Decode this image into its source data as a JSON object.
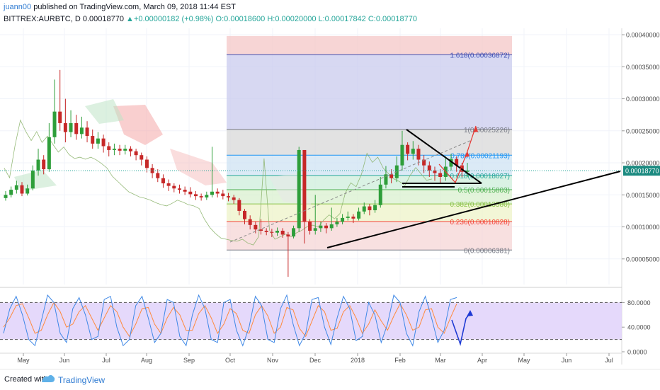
{
  "header": {
    "user": "juann00",
    "published_text": "published on TradingView.com, March 09, 2018 11:44 EST",
    "symbol": "BITTREX:AURBTC, D",
    "last": "0.00018770",
    "change": "+0.00000182 (+0.98%)",
    "ohlc": "O:0.00018600 H:0.00020000 L:0.00017842 C:0.00018770"
  },
  "footer": {
    "created": "Created with",
    "brand": "TradingView"
  },
  "chart_data": {
    "type": "candlestick",
    "x_labels": [
      "May",
      "Jun",
      "Jul",
      "Aug",
      "Sep",
      "Oct",
      "Nov",
      "Dec",
      "2018",
      "Feb",
      "Mar",
      "Apr",
      "May",
      "Jun",
      "Jul"
    ],
    "y_ticks": [
      "0.00040000",
      "0.00035000",
      "0.00030000",
      "0.00025000",
      "0.00020000",
      "0.00015000",
      "0.00010000",
      "0.00005000"
    ],
    "ylim": [
      1e-05,
      0.00041
    ],
    "current_price": "0.00018770",
    "fib_levels": [
      {
        "ratio": 1.618,
        "label": "1.618(0.00036872)",
        "price": 0.00036872,
        "color": "#3f51b5"
      },
      {
        "ratio": 1,
        "label": "1(0.00025226)",
        "price": 0.00025226,
        "color": "#787b86"
      },
      {
        "ratio": 0.786,
        "label": "0.786(0.00021193)",
        "price": 0.00021193,
        "color": "#2196f3"
      },
      {
        "ratio": 0.618,
        "label": "0.618(0.00018027)",
        "price": 0.00018027,
        "color": "#26a69a"
      },
      {
        "ratio": 0.5,
        "label": "0.5(0.00015803)",
        "price": 0.00015803,
        "color": "#4caf50"
      },
      {
        "ratio": 0.382,
        "label": "0.382(0.00013580)",
        "price": 0.0001358,
        "color": "#8bc34a"
      },
      {
        "ratio": 0.236,
        "label": "0.236(0.00010828)",
        "price": 0.00010828,
        "color": "#f44336"
      },
      {
        "ratio": 0,
        "label": "0(0.00006381)",
        "price": 6.381e-05,
        "color": "#787b86"
      }
    ],
    "candles": [
      [
        0.000145,
        0.00015,
        0.000156,
        0.000141
      ],
      [
        0.00015,
        0.000158,
        0.000163,
        0.000146
      ],
      [
        0.000158,
        0.000165,
        0.000172,
        0.000152
      ],
      [
        0.000165,
        0.000152,
        0.00017,
        0.000148
      ],
      [
        0.000152,
        0.00016,
        0.000166,
        0.000149
      ],
      [
        0.00016,
        0.000188,
        0.000196,
        0.000157
      ],
      [
        0.000188,
        0.000205,
        0.000222,
        0.00018
      ],
      [
        0.000205,
        0.00019,
        0.000212,
        0.000182
      ],
      [
        0.00019,
        0.00024,
        0.000262,
        0.000186
      ],
      [
        0.00024,
        0.00028,
        0.00033,
        0.00023
      ],
      [
        0.00028,
        0.000262,
        0.000345,
        0.00025
      ],
      [
        0.000262,
        0.000248,
        0.0003,
        0.000232
      ],
      [
        0.000248,
        0.000262,
        0.000282,
        0.00024
      ],
      [
        0.000262,
        0.000245,
        0.000275,
        0.000236
      ],
      [
        0.000245,
        0.000255,
        0.000272,
        0.000238
      ],
      [
        0.000255,
        0.000242,
        0.000265,
        0.000232
      ],
      [
        0.000242,
        0.00023,
        0.000252,
        0.000222
      ],
      [
        0.00023,
        0.000238,
        0.000248,
        0.000222
      ],
      [
        0.000238,
        0.000226,
        0.000244,
        0.000216
      ],
      [
        0.000226,
        0.00022,
        0.000232,
        0.00021
      ],
      [
        0.00022,
        0.000222,
        0.00023,
        0.000212
      ],
      [
        0.000222,
        0.000219,
        0.000228,
        0.000212
      ],
      [
        0.000219,
        0.000222,
        0.000228,
        0.000213
      ],
      [
        0.000222,
        0.000218,
        0.000226,
        0.00021
      ],
      [
        0.000218,
        0.000212,
        0.000222,
        0.000204
      ],
      [
        0.000212,
        0.000205,
        0.000216,
        0.000196
      ],
      [
        0.000205,
        0.000192,
        0.00021,
        0.000185
      ],
      [
        0.000192,
        0.000184,
        0.000198,
        0.000176
      ],
      [
        0.000184,
        0.000176,
        0.00019,
        0.00017
      ],
      [
        0.000176,
        0.000168,
        0.000182,
        0.000161
      ],
      [
        0.000168,
        0.000164,
        0.000174,
        0.000156
      ],
      [
        0.000164,
        0.00016,
        0.000168,
        0.000154
      ],
      [
        0.00016,
        0.000158,
        0.000166,
        0.000152
      ],
      [
        0.000158,
        0.000155,
        0.000163,
        0.00015
      ],
      [
        0.000155,
        0.000151,
        0.000162,
        0.000146
      ],
      [
        0.000151,
        0.000148,
        0.000156,
        0.000142
      ],
      [
        0.000148,
        0.000146,
        0.000152,
        0.000141
      ],
      [
        0.000146,
        0.00015,
        0.000155,
        0.000142
      ],
      [
        0.00015,
        0.000155,
        0.000225,
        0.000146
      ],
      [
        0.000155,
        0.000152,
        0.00016,
        0.000146
      ],
      [
        0.000152,
        0.000148,
        0.000158,
        0.000143
      ],
      [
        0.000148,
        0.000146,
        0.000153,
        0.00014
      ],
      [
        0.000146,
        0.000142,
        0.00015,
        0.000136
      ],
      [
        0.000142,
        0.000125,
        0.000145,
        0.000118
      ],
      [
        0.000125,
        0.000112,
        0.000128,
        0.000104
      ],
      [
        0.000112,
        0.000103,
        0.000118,
        9.6e-05
      ],
      [
        0.000103,
        9.6e-05,
        0.000108,
        9e-05
      ],
      [
        9.6e-05,
        9.4e-05,
        0.000112,
        8.8e-05
      ],
      [
        9.4e-05,
        9.2e-05,
        9.8e-05,
        8.7e-05
      ],
      [
        9.2e-05,
        9.1e-05,
        9.7e-05,
        8.4e-05
      ],
      [
        9.1e-05,
        9.4e-05,
        9.9e-05,
        8.6e-05
      ],
      [
        9.4e-05,
        8.8e-05,
        9.8e-05,
        8.3e-05
      ],
      [
        8.8e-05,
        8.5e-05,
        9.2e-05,
        2.2e-05
      ],
      [
        8.5e-05,
        9.8e-05,
        0.000102,
        8.2e-05
      ],
      [
        9.8e-05,
        0.00022,
        0.000225,
        9.2e-05
      ],
      [
        0.00022,
        0.000108,
        0.0002,
        7.4e-05
      ],
      [
        0.000108,
        9.4e-05,
        0.000112,
        8.8e-05
      ],
      [
        9.4e-05,
        9.8e-05,
        0.00015,
        8.8e-05
      ],
      [
        9.8e-05,
        0.000102,
        0.000108,
        9.2e-05
      ],
      [
        0.000102,
        9.8e-05,
        0.000106,
        9e-05
      ],
      [
        9.8e-05,
        0.000104,
        0.00013,
        9.4e-05
      ],
      [
        0.000104,
        0.000108,
        0.000114,
        0.0001
      ],
      [
        0.000108,
        0.000114,
        0.00012,
        0.000104
      ],
      [
        0.000114,
        0.000116,
        0.000124,
        0.00011
      ],
      [
        0.000116,
        0.000113,
        0.00012,
        0.000106
      ],
      [
        0.000113,
        0.000124,
        0.00013,
        0.00011
      ],
      [
        0.000124,
        0.000132,
        0.000138,
        0.00012
      ],
      [
        0.000132,
        0.000126,
        0.000136,
        0.000118
      ],
      [
        0.000126,
        0.000134,
        0.000142,
        0.000122
      ],
      [
        0.000134,
        0.000166,
        0.000178,
        0.00013
      ],
      [
        0.000166,
        0.000182,
        0.000195,
        0.00016
      ],
      [
        0.000182,
        0.000176,
        0.00019,
        0.000168
      ],
      [
        0.000176,
        0.000196,
        0.00021,
        0.00017
      ],
      [
        0.000196,
        0.000228,
        0.00025,
        0.000188
      ],
      [
        0.000228,
        0.000214,
        0.000232,
        0.000204
      ],
      [
        0.000214,
        0.000222,
        0.000234,
        0.000205
      ],
      [
        0.000222,
        0.000205,
        0.000228,
        0.000196
      ],
      [
        0.000205,
        0.000196,
        0.000212,
        0.000184
      ],
      [
        0.000196,
        0.000188,
        0.000202,
        0.000178
      ],
      [
        0.000188,
        0.000184,
        0.000194,
        0.000172
      ],
      [
        0.000184,
        0.000178,
        0.00019,
        0.000168
      ],
      [
        0.000178,
        0.000194,
        0.00021,
        0.000172
      ],
      [
        0.000194,
        0.000206,
        0.000214,
        0.000188
      ],
      [
        0.000206,
        0.000196,
        0.00021,
        0.000186
      ],
      [
        0.000196,
        0.000186,
        0.0002,
        0.000178
      ],
      [
        0.000186,
        0.000188,
        0.0002,
        0.000178
      ]
    ],
    "stoch_ticks": [
      "80.0000",
      "40.0000",
      "0.0000"
    ],
    "stoch_k": [
      30,
      70,
      90,
      60,
      20,
      10,
      50,
      92,
      80,
      30,
      15,
      70,
      88,
      60,
      20,
      25,
      85,
      90,
      40,
      10,
      20,
      75,
      90,
      55,
      15,
      30,
      85,
      80,
      25,
      10,
      60,
      92,
      70,
      20,
      15,
      80,
      85,
      35,
      10,
      40,
      90,
      75,
      20,
      15,
      70,
      92,
      45,
      10,
      30,
      85,
      88,
      40,
      12,
      55,
      90,
      70,
      18,
      25,
      80,
      60,
      15,
      45,
      92,
      80,
      30,
      10,
      65,
      90,
      55,
      15,
      35,
      85,
      88
    ],
    "stoch_d": [
      40,
      55,
      75,
      78,
      55,
      30,
      35,
      60,
      80,
      65,
      40,
      45,
      65,
      75,
      55,
      35,
      55,
      75,
      65,
      40,
      25,
      45,
      70,
      72,
      45,
      30,
      55,
      72,
      60,
      35,
      35,
      62,
      75,
      55,
      30,
      45,
      70,
      62,
      35,
      30,
      60,
      75,
      58,
      30,
      40,
      72,
      68,
      38,
      25,
      50,
      75,
      65,
      35,
      38,
      65,
      75,
      55,
      30,
      45,
      68,
      50,
      35,
      58,
      78,
      60,
      35,
      40,
      68,
      70,
      40,
      30,
      55,
      78
    ]
  },
  "stoch_data": {}
}
